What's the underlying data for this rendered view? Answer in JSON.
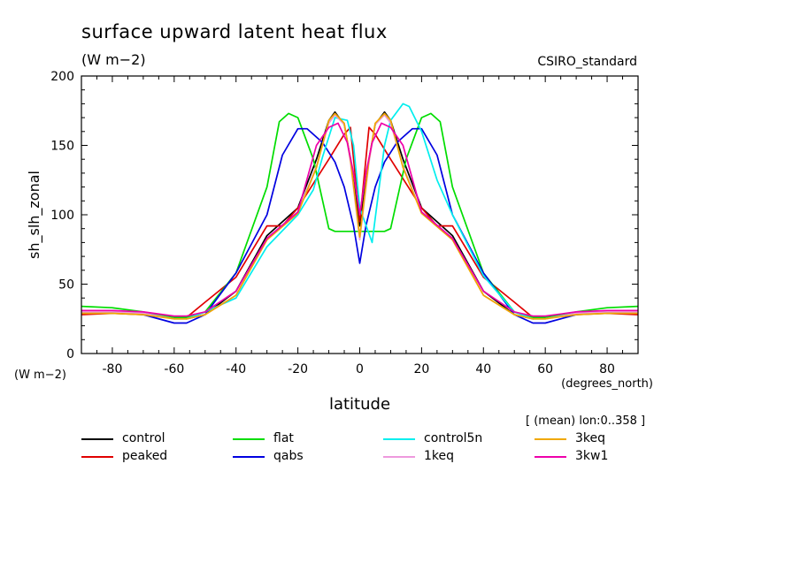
{
  "header": {
    "title": "surface upward latent heat flux",
    "units": "(W m−2)",
    "model": "CSIRO_standard",
    "averaging_note": "[ (mean) lon:0..358 ]"
  },
  "chart_data": {
    "type": "line",
    "ylabel": "sh_slh_zonal",
    "yunits": "(W m−2)",
    "xlabel": "latitude",
    "xunits": "(degrees_north)",
    "xlim": [
      -90,
      90
    ],
    "ylim": [
      0,
      200
    ],
    "x_ticks": [
      -80,
      -60,
      -40,
      -20,
      0,
      20,
      40,
      60,
      80
    ],
    "y_ticks": [
      0,
      50,
      100,
      150,
      200
    ],
    "grid": false,
    "legend_placement": "bottom",
    "series": [
      {
        "name": "control",
        "color": "#000000",
        "x": [
          -90,
          -80,
          -70,
          -60,
          -56,
          -50,
          -40,
          -30,
          -20,
          -14,
          -10,
          -8,
          -5,
          -3,
          0,
          3,
          5,
          8,
          10,
          14,
          20,
          30,
          40,
          50,
          56,
          60,
          70,
          80,
          90
        ],
        "y": [
          31,
          30,
          29,
          26,
          25,
          28,
          45,
          85,
          105,
          140,
          168,
          174,
          165,
          140,
          92,
          140,
          165,
          174,
          168,
          140,
          105,
          85,
          45,
          28,
          25,
          26,
          29,
          30,
          31
        ]
      },
      {
        "name": "peaked",
        "color": "#e00000",
        "x": [
          -90,
          -80,
          -70,
          -60,
          -56,
          -50,
          -40,
          -30,
          -25,
          -20,
          -10,
          -5,
          -3,
          0,
          3,
          5,
          10,
          20,
          25,
          30,
          40,
          50,
          56,
          60,
          70,
          80,
          90
        ],
        "y": [
          28,
          29,
          28,
          26,
          26,
          37,
          55,
          92,
          92,
          105,
          140,
          158,
          163,
          95,
          163,
          158,
          140,
          105,
          92,
          92,
          55,
          37,
          26,
          26,
          28,
          29,
          28
        ]
      },
      {
        "name": "flat",
        "color": "#00dd00",
        "x": [
          -90,
          -80,
          -70,
          -60,
          -56,
          -50,
          -40,
          -30,
          -26,
          -23,
          -20,
          -15,
          -10,
          -8,
          -5,
          0,
          5,
          8,
          10,
          15,
          20,
          23,
          26,
          30,
          40,
          50,
          56,
          60,
          70,
          80,
          90
        ],
        "y": [
          34,
          33,
          30,
          26,
          26,
          30,
          58,
          120,
          167,
          173,
          170,
          140,
          90,
          88,
          88,
          88,
          88,
          88,
          90,
          140,
          170,
          173,
          167,
          120,
          58,
          30,
          26,
          26,
          30,
          33,
          34
        ]
      },
      {
        "name": "qabs",
        "color": "#0000e0",
        "x": [
          -90,
          -80,
          -70,
          -60,
          -56,
          -50,
          -40,
          -30,
          -25,
          -20,
          -17,
          -12,
          -8,
          -5,
          -2,
          0,
          2,
          5,
          8,
          12,
          17,
          20,
          25,
          30,
          40,
          50,
          56,
          60,
          70,
          80,
          90
        ],
        "y": [
          30,
          30,
          28,
          22,
          22,
          28,
          58,
          100,
          143,
          162,
          162,
          152,
          138,
          120,
          92,
          65,
          92,
          120,
          138,
          152,
          162,
          162,
          143,
          100,
          58,
          28,
          22,
          22,
          28,
          30,
          30
        ]
      },
      {
        "name": "control5n",
        "color": "#00eeee",
        "x": [
          -90,
          -80,
          -70,
          -60,
          -56,
          -50,
          -40,
          -30,
          -20,
          -15,
          -12,
          -8,
          -4,
          -2,
          0,
          4,
          6,
          8,
          10,
          14,
          16,
          20,
          25,
          30,
          40,
          50,
          56,
          60,
          70,
          80,
          90
        ],
        "y": [
          30,
          30,
          29,
          25,
          25,
          30,
          40,
          77,
          100,
          118,
          142,
          170,
          168,
          150,
          105,
          80,
          115,
          150,
          168,
          180,
          178,
          160,
          125,
          100,
          56,
          30,
          25,
          25,
          29,
          30,
          30
        ]
      },
      {
        "name": "1keq",
        "color": "#ee99dd",
        "x": [
          -90,
          -80,
          -70,
          -60,
          -56,
          -50,
          -40,
          -30,
          -20,
          -14,
          -10,
          -8,
          -5,
          -3,
          0,
          3,
          5,
          8,
          10,
          14,
          20,
          30,
          40,
          50,
          56,
          60,
          70,
          80,
          90
        ],
        "y": [
          30,
          30,
          29,
          25,
          25,
          28,
          42,
          83,
          102,
          135,
          166,
          172,
          165,
          138,
          82,
          138,
          165,
          172,
          166,
          135,
          102,
          83,
          42,
          28,
          25,
          25,
          29,
          30,
          30
        ]
      },
      {
        "name": "3keq",
        "color": "#f0a800",
        "x": [
          -90,
          -80,
          -70,
          -60,
          -56,
          -50,
          -40,
          -30,
          -20,
          -14,
          -10,
          -8,
          -5,
          -3,
          0,
          3,
          5,
          8,
          10,
          14,
          20,
          30,
          40,
          50,
          56,
          60,
          70,
          80,
          90
        ],
        "y": [
          29,
          29,
          28,
          25,
          25,
          28,
          42,
          82,
          101,
          134,
          168,
          173,
          166,
          140,
          84,
          140,
          166,
          173,
          168,
          134,
          101,
          82,
          42,
          28,
          25,
          25,
          28,
          29,
          29
        ]
      },
      {
        "name": "3kw1",
        "color": "#ee00aa",
        "x": [
          -90,
          -80,
          -70,
          -60,
          -56,
          -50,
          -40,
          -30,
          -20,
          -14,
          -10,
          -7,
          -4,
          -2,
          0,
          2,
          4,
          7,
          10,
          14,
          20,
          30,
          40,
          50,
          56,
          60,
          70,
          80,
          90
        ],
        "y": [
          31,
          31,
          30,
          27,
          27,
          30,
          45,
          83,
          102,
          150,
          163,
          166,
          152,
          130,
          100,
          130,
          152,
          166,
          163,
          150,
          102,
          83,
          45,
          30,
          27,
          27,
          30,
          31,
          31
        ]
      }
    ]
  },
  "legend": [
    {
      "label": "control",
      "color": "#000000"
    },
    {
      "label": "flat",
      "color": "#00dd00"
    },
    {
      "label": "control5n",
      "color": "#00eeee"
    },
    {
      "label": "3keq",
      "color": "#f0a800"
    },
    {
      "label": "peaked",
      "color": "#e00000"
    },
    {
      "label": "qabs",
      "color": "#0000e0"
    },
    {
      "label": "1keq",
      "color": "#ee99dd"
    },
    {
      "label": "3kw1",
      "color": "#ee00aa"
    }
  ]
}
